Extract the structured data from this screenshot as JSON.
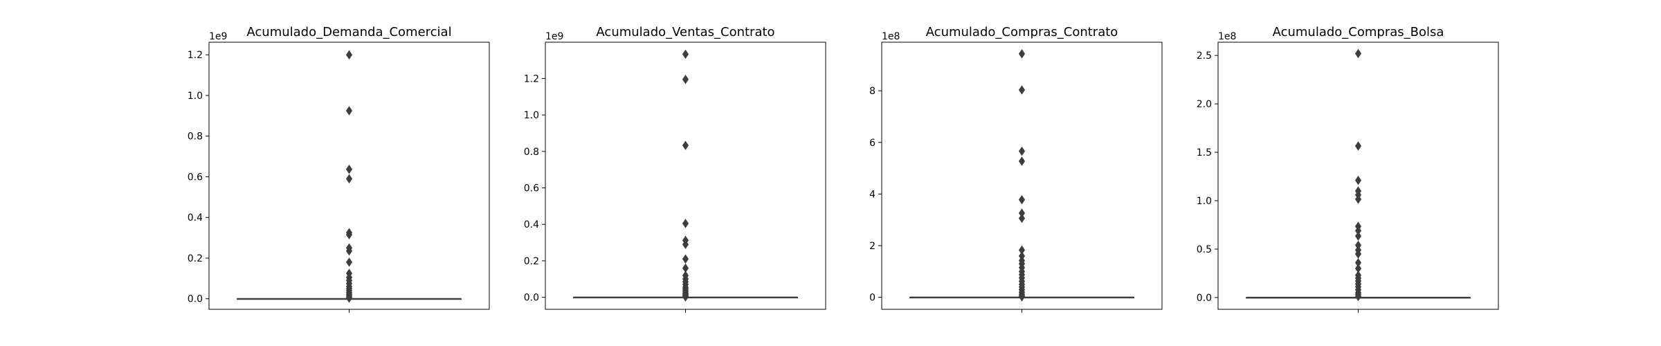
{
  "colors": {
    "background": "#ffffff",
    "axes_edge": "#000000",
    "box": "#3d3d3d",
    "outlier": "#3d3d3d"
  },
  "chart_data": [
    {
      "type": "box",
      "title": "Acumulado_Demanda_Comercial",
      "offset_label": "1e9",
      "ylim": [
        -0.052,
        1.262
      ],
      "yticks": [
        0.0,
        0.2,
        0.4,
        0.6,
        0.8,
        1.0,
        1.2
      ],
      "ytick_labels": [
        "0.0",
        "0.2",
        "0.4",
        "0.6",
        "0.8",
        "1.0",
        "1.2"
      ],
      "median": 0.0,
      "q1": 0.0,
      "q3": 0.0,
      "outliers": [
        1.2,
        0.925,
        0.637,
        0.59,
        0.325,
        0.315,
        0.25,
        0.235,
        0.18,
        0.125,
        0.105,
        0.09,
        0.075,
        0.06,
        0.05,
        0.04,
        0.03,
        0.022,
        0.015,
        0.008,
        0.003
      ]
    },
    {
      "type": "box",
      "title": "Acumulado_Ventas_Contrato",
      "offset_label": "1e9",
      "ylim": [
        -0.066,
        1.399
      ],
      "yticks": [
        0.0,
        0.2,
        0.4,
        0.6,
        0.8,
        1.0,
        1.2
      ],
      "ytick_labels": [
        "0.0",
        "0.2",
        "0.4",
        "0.6",
        "0.8",
        "1.0",
        "1.2"
      ],
      "median": 0.0,
      "q1": 0.0,
      "q3": 0.0,
      "outliers": [
        1.333,
        1.195,
        0.833,
        0.405,
        0.312,
        0.29,
        0.21,
        0.16,
        0.12,
        0.1,
        0.085,
        0.07,
        0.055,
        0.045,
        0.035,
        0.025,
        0.018,
        0.012,
        0.006,
        0.002
      ]
    },
    {
      "type": "box",
      "title": "Acumulado_Compras_Contrato",
      "offset_label": "1e8",
      "ylim": [
        -0.465,
        9.88
      ],
      "yticks": [
        0,
        2,
        4,
        6,
        8
      ],
      "ytick_labels": [
        "0",
        "2",
        "4",
        "6",
        "8"
      ],
      "median": 0.0,
      "q1": 0.0,
      "q3": 0.0,
      "outliers": [
        9.43,
        8.03,
        5.66,
        5.27,
        3.78,
        3.26,
        3.06,
        1.83,
        1.6,
        1.42,
        1.3,
        1.15,
        1.0,
        0.88,
        0.75,
        0.62,
        0.5,
        0.4,
        0.3,
        0.2,
        0.12,
        0.06,
        0.02
      ]
    },
    {
      "type": "box",
      "title": "Acumulado_Compras_Bolsa",
      "offset_label": "1e8",
      "ylim": [
        -0.122,
        2.637
      ],
      "yticks": [
        0.0,
        0.5,
        1.0,
        1.5,
        2.0,
        2.5
      ],
      "ytick_labels": [
        "0.0",
        "0.5",
        "1.0",
        "1.5",
        "2.0",
        "2.5"
      ],
      "median": 0.0,
      "q1": 0.0,
      "q3": 0.0,
      "outliers": [
        2.52,
        1.565,
        1.21,
        1.1,
        1.06,
        1.015,
        0.735,
        0.69,
        0.635,
        0.54,
        0.49,
        0.45,
        0.36,
        0.3,
        0.23,
        0.2,
        0.17,
        0.14,
        0.11,
        0.08,
        0.05,
        0.03,
        0.01
      ]
    }
  ]
}
